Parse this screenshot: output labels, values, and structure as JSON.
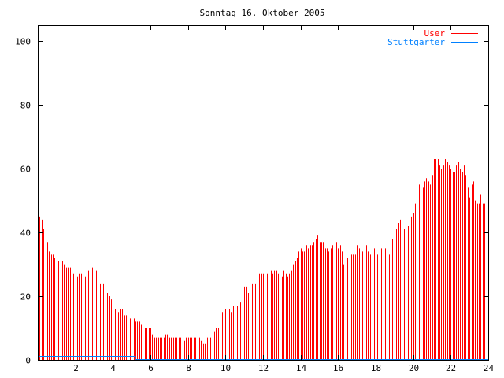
{
  "chart_data": {
    "type": "bar",
    "title": "Sonntag 16. Oktober 2005",
    "xlabel": "",
    "ylabel": "",
    "xlim": [
      0,
      24
    ],
    "ylim": [
      0,
      105
    ],
    "xticks": [
      "2",
      "4",
      "6",
      "8",
      "10",
      "12",
      "14",
      "16",
      "18",
      "20",
      "22",
      "24"
    ],
    "yticks": [
      "0",
      "20",
      "40",
      "60",
      "80",
      "100"
    ],
    "legend_position": "top-right",
    "series": [
      {
        "name": "User",
        "color": "#ff0000",
        "style": "impulses",
        "x_step_hours": 0.1,
        "values": [
          45,
          45,
          44,
          41,
          38,
          37,
          34,
          33,
          33,
          32,
          32,
          31,
          30,
          31,
          30,
          29,
          29,
          29,
          27,
          27,
          26,
          26,
          27,
          27,
          26,
          26,
          27,
          28,
          28,
          29,
          30,
          28,
          26,
          24,
          23,
          24,
          23,
          21,
          20,
          19,
          16,
          16,
          16,
          15,
          16,
          16,
          14,
          14,
          14,
          13,
          13,
          13,
          12,
          12,
          12,
          11,
          8,
          10,
          10,
          10,
          10,
          8,
          7,
          7,
          7,
          7,
          7,
          7,
          8,
          8,
          7,
          7,
          7,
          7,
          7,
          7,
          7,
          7,
          6,
          7,
          7,
          7,
          7,
          7,
          7,
          7,
          7,
          6,
          5,
          5,
          7,
          7,
          7,
          9,
          9,
          10,
          10,
          12,
          15,
          16,
          16,
          16,
          16,
          15,
          17,
          15,
          17,
          18,
          18,
          22,
          23,
          23,
          21,
          22,
          24,
          24,
          24,
          26,
          27,
          27,
          27,
          27,
          27,
          26,
          28,
          27,
          28,
          28,
          27,
          26,
          26,
          28,
          27,
          26,
          27,
          28,
          30,
          31,
          32,
          34,
          35,
          34,
          34,
          36,
          35,
          36,
          36,
          37,
          38,
          39,
          37,
          37,
          37,
          35,
          35,
          34,
          35,
          36,
          36,
          37,
          35,
          36,
          34,
          30,
          31,
          32,
          32,
          33,
          33,
          33,
          36,
          35,
          33,
          34,
          36,
          36,
          34,
          33,
          34,
          35,
          33,
          33,
          35,
          35,
          32,
          35,
          35,
          33,
          36,
          38,
          40,
          41,
          43,
          44,
          42,
          41,
          43,
          42,
          45,
          45,
          46,
          49,
          54,
          55,
          55,
          54,
          56,
          57,
          56,
          55,
          58,
          63,
          63,
          63,
          61,
          60,
          61,
          63,
          62,
          61,
          60,
          59,
          59,
          61,
          62,
          60,
          59,
          61,
          58,
          54,
          51,
          55,
          56,
          50,
          49,
          49,
          52,
          49,
          49,
          48
        ]
      },
      {
        "name": "Stuttgarter",
        "color": "#0080ff",
        "style": "steps",
        "points": [
          [
            0,
            1
          ],
          [
            5.2,
            1
          ],
          [
            5.2,
            0
          ],
          [
            24,
            0
          ]
        ]
      }
    ]
  }
}
